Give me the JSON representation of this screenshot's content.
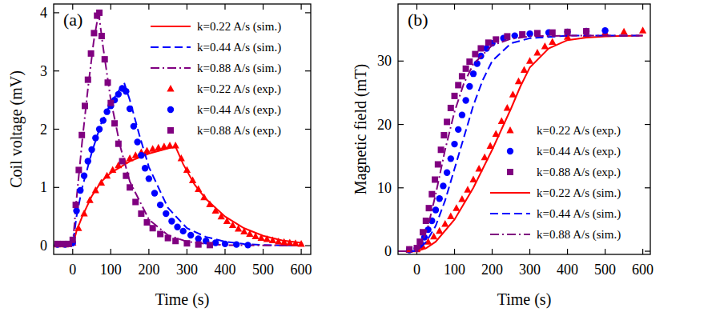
{
  "chart_data": [
    {
      "type": "line",
      "annotation": "(a)",
      "x_label": "Time (s)",
      "y_label": "Coil voltage (mV)",
      "xlim": [
        -50,
        625
      ],
      "xticks": [
        0,
        100,
        200,
        300,
        400,
        500,
        600
      ],
      "ylim": [
        -0.15,
        4.15
      ],
      "yticks": [
        0,
        1,
        2,
        3,
        4
      ],
      "legend": "upper right",
      "series": [
        {
          "name": "k=0.22 A/s (sim.)",
          "type": "line",
          "color": "#ff0000",
          "line_style": "solid",
          "x": [
            -50,
            0,
            10,
            25,
            50,
            75,
            100,
            150,
            200,
            250,
            270,
            290,
            320,
            350,
            400,
            450,
            500,
            550,
            600
          ],
          "values": [
            0,
            0,
            0.25,
            0.5,
            0.85,
            1.1,
            1.25,
            1.45,
            1.58,
            1.67,
            1.7,
            1.4,
            1.05,
            0.8,
            0.5,
            0.3,
            0.17,
            0.09,
            0.05
          ]
        },
        {
          "name": "k=0.44 A/s (sim.)",
          "type": "line",
          "color": "#0000ff",
          "line_style": "dashed",
          "x": [
            -50,
            0,
            10,
            25,
            50,
            75,
            100,
            135,
            150,
            175,
            200,
            250,
            300,
            350,
            400,
            450,
            500,
            600
          ],
          "values": [
            0,
            0,
            0.5,
            1.0,
            1.6,
            2.1,
            2.45,
            2.8,
            2.5,
            1.9,
            1.35,
            0.65,
            0.3,
            0.15,
            0.07,
            0.03,
            0.01,
            0
          ]
        },
        {
          "name": "k=0.88 A/s (sim.)",
          "type": "line",
          "color": "#800080",
          "line_style": "dashdot",
          "x": [
            -50,
            0,
            10,
            25,
            40,
            55,
            68,
            80,
            100,
            125,
            150,
            200,
            250,
            300,
            350,
            400,
            600
          ],
          "values": [
            0,
            0,
            0.8,
            1.8,
            2.7,
            3.5,
            4.0,
            3.4,
            2.5,
            1.7,
            1.1,
            0.45,
            0.18,
            0.07,
            0.03,
            0.01,
            0
          ]
        },
        {
          "name": "k=0.22 A/s (exp.)",
          "type": "scatter",
          "color": "#ff0000",
          "marker": "triangle",
          "x": [
            -40,
            -20,
            0,
            15,
            30,
            45,
            60,
            75,
            90,
            105,
            120,
            135,
            150,
            165,
            180,
            195,
            210,
            225,
            240,
            255,
            270,
            285,
            300,
            315,
            330,
            345,
            360,
            375,
            390,
            405,
            420,
            435,
            450,
            465,
            480,
            495,
            510,
            525,
            540,
            555,
            570,
            585,
            600
          ],
          "values": [
            0.02,
            0.02,
            0.05,
            0.3,
            0.55,
            0.78,
            0.95,
            1.08,
            1.2,
            1.3,
            1.38,
            1.45,
            1.5,
            1.55,
            1.6,
            1.63,
            1.66,
            1.68,
            1.7,
            1.72,
            1.72,
            1.5,
            1.3,
            1.12,
            0.97,
            0.83,
            0.71,
            0.6,
            0.5,
            0.42,
            0.35,
            0.29,
            0.24,
            0.2,
            0.16,
            0.13,
            0.11,
            0.09,
            0.07,
            0.06,
            0.05,
            0.04,
            0.03
          ]
        },
        {
          "name": "k=0.44 A/s (exp.)",
          "type": "scatter",
          "color": "#0000ff",
          "marker": "circle",
          "x": [
            -40,
            -20,
            0,
            10,
            20,
            30,
            40,
            50,
            60,
            70,
            80,
            90,
            100,
            110,
            120,
            130,
            140,
            150,
            160,
            170,
            180,
            190,
            200,
            215,
            230,
            245,
            260,
            275,
            290,
            310,
            330,
            350,
            375,
            400,
            430,
            460
          ],
          "values": [
            0.02,
            0.02,
            0.05,
            0.6,
            0.95,
            1.2,
            1.45,
            1.65,
            1.85,
            2.0,
            2.15,
            2.3,
            2.4,
            2.5,
            2.6,
            2.7,
            2.65,
            2.35,
            2.05,
            1.78,
            1.55,
            1.33,
            1.15,
            0.9,
            0.7,
            0.55,
            0.42,
            0.32,
            0.25,
            0.18,
            0.12,
            0.08,
            0.05,
            0.03,
            0.02,
            0.01
          ]
        },
        {
          "name": "k=0.88 A/s (exp.)",
          "type": "scatter",
          "color": "#800080",
          "marker": "square",
          "x": [
            -40,
            -25,
            -10,
            0,
            8,
            16,
            24,
            32,
            40,
            48,
            56,
            64,
            70,
            76,
            84,
            92,
            100,
            110,
            120,
            130,
            140,
            150,
            165,
            180,
            195,
            210,
            230,
            250,
            270,
            300,
            330,
            360
          ],
          "values": [
            0.03,
            0.03,
            0.03,
            0.1,
            0.7,
            1.3,
            1.9,
            2.4,
            2.85,
            3.3,
            3.65,
            3.95,
            4.0,
            3.6,
            3.2,
            2.8,
            2.45,
            2.1,
            1.75,
            1.45,
            1.2,
            1.0,
            0.75,
            0.55,
            0.4,
            0.3,
            0.2,
            0.13,
            0.08,
            0.04,
            0.02,
            0.01
          ]
        }
      ]
    },
    {
      "type": "line",
      "annotation": "(b)",
      "x_label": "Time (s)",
      "y_label": "Magnetic field (mT)",
      "xlim": [
        -50,
        620
      ],
      "xticks": [
        0,
        100,
        200,
        300,
        400,
        500,
        600
      ],
      "ylim": [
        -0.5,
        39
      ],
      "yticks": [
        0,
        10,
        20,
        30
      ],
      "legend": "lower right",
      "series": [
        {
          "name": "k=0.22 A/s (exp.)",
          "type": "scatter",
          "color": "#ff0000",
          "marker": "triangle",
          "x": [
            -20,
            0,
            15,
            30,
            45,
            60,
            75,
            90,
            105,
            120,
            135,
            150,
            165,
            180,
            195,
            210,
            225,
            240,
            255,
            270,
            285,
            300,
            320,
            340,
            360,
            400,
            450,
            500,
            550,
            600
          ],
          "values": [
            0.2,
            0.3,
            0.8,
            1.5,
            2.3,
            3.2,
            4.3,
            5.5,
            6.8,
            8.2,
            9.7,
            11.3,
            13,
            14.8,
            16.6,
            18.5,
            20.5,
            22.6,
            24.7,
            26.8,
            28.6,
            30,
            31.3,
            32.3,
            33,
            33.8,
            34.2,
            34.5,
            34.6,
            34.8
          ]
        },
        {
          "name": "k=0.44 A/s (exp.)",
          "type": "scatter",
          "color": "#0000ff",
          "marker": "circle",
          "x": [
            -20,
            0,
            10,
            20,
            30,
            40,
            50,
            60,
            70,
            80,
            90,
            100,
            110,
            120,
            130,
            140,
            150,
            160,
            170,
            185,
            200,
            230,
            260,
            300,
            350,
            400,
            450,
            500
          ],
          "values": [
            0.2,
            0.4,
            1.2,
            2.2,
            3.4,
            4.8,
            6.5,
            8.3,
            10.3,
            12.4,
            14.6,
            16.9,
            19.2,
            21.5,
            23.8,
            26,
            28,
            29.6,
            30.8,
            32,
            32.8,
            33.6,
            34,
            34.3,
            34.5,
            34.6,
            34.7,
            34.8
          ]
        },
        {
          "name": "k=0.88 A/s (exp.)",
          "type": "scatter",
          "color": "#800080",
          "marker": "square",
          "x": [
            -20,
            0,
            8,
            16,
            24,
            32,
            40,
            48,
            56,
            64,
            72,
            80,
            90,
            100,
            110,
            120,
            130,
            140,
            155,
            170,
            190,
            210,
            240,
            280,
            320,
            360,
            400,
            450
          ],
          "values": [
            0.3,
            0.5,
            1.5,
            3,
            4.8,
            6.8,
            9,
            11.3,
            13.7,
            16,
            18.3,
            20.4,
            22.6,
            24.5,
            26.2,
            27.6,
            28.8,
            29.9,
            31.1,
            32,
            32.9,
            33.4,
            33.9,
            34.2,
            34.4,
            34.5,
            34.6,
            34.7
          ]
        },
        {
          "name": "k=0.22 A/s (sim.)",
          "type": "line",
          "color": "#ff0000",
          "line_style": "solid",
          "x": [
            -50,
            0,
            25,
            50,
            100,
            150,
            200,
            250,
            275,
            300,
            350,
            400,
            450,
            500,
            600
          ],
          "values": [
            0,
            0,
            0.5,
            1.5,
            5,
            10,
            16,
            22.5,
            26,
            29,
            32,
            33.3,
            33.7,
            33.9,
            34
          ]
        },
        {
          "name": "k=0.44 A/s (sim.)",
          "type": "line",
          "color": "#0000ff",
          "line_style": "dashed",
          "x": [
            -50,
            0,
            25,
            50,
            75,
            100,
            125,
            150,
            175,
            200,
            250,
            300,
            400,
            600
          ],
          "values": [
            0,
            0,
            1.5,
            4,
            8,
            13,
            18,
            23,
            27,
            30,
            32.8,
            33.6,
            34,
            34
          ]
        },
        {
          "name": "k=0.88 A/s (sim.)",
          "type": "line",
          "color": "#800080",
          "line_style": "dashdot",
          "x": [
            -50,
            0,
            15,
            30,
            50,
            75,
            100,
            125,
            150,
            200,
            250,
            300,
            400,
            600
          ],
          "values": [
            0,
            0,
            1.5,
            4,
            9,
            16,
            22,
            26.5,
            29.5,
            32.5,
            33.5,
            33.9,
            34,
            34
          ]
        }
      ]
    }
  ]
}
